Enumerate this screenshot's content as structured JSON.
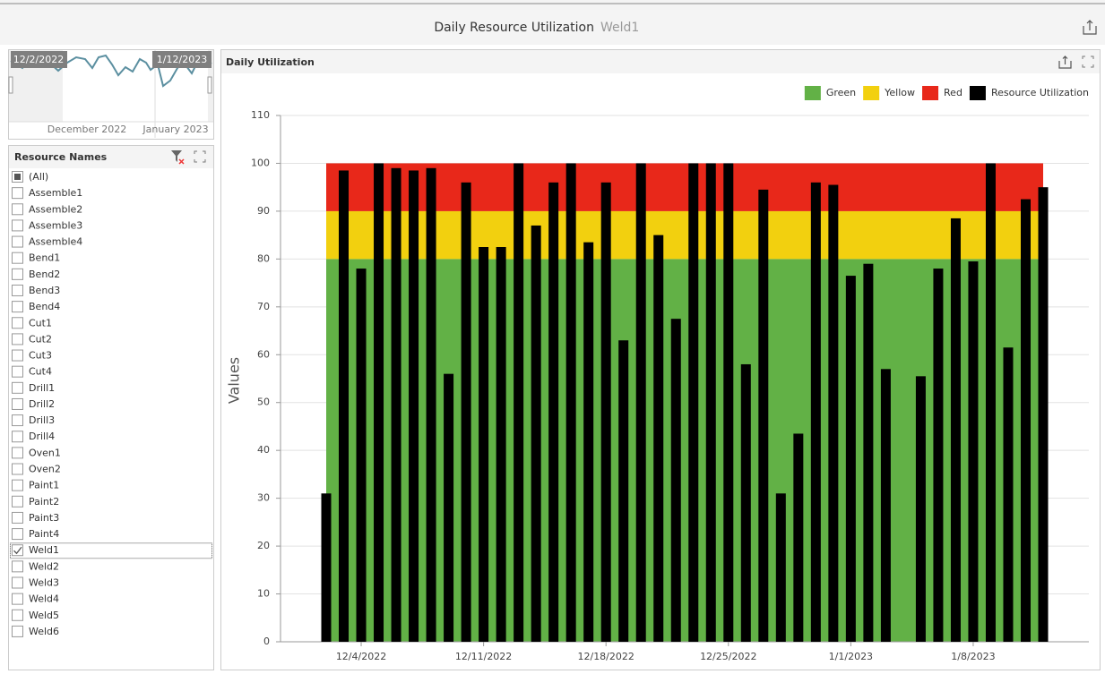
{
  "header": {
    "title": "Daily Resource Utilization",
    "subtitle": "Weld1"
  },
  "range_selector": {
    "start_label": "12/2/2022",
    "end_label": "1/12/2023",
    "months": [
      "December 2022",
      "January 2023"
    ]
  },
  "resource_list": {
    "title": "Resource Names",
    "items": [
      {
        "label": "(All)",
        "state": "partial"
      },
      {
        "label": "Assemble1",
        "state": "unchecked"
      },
      {
        "label": "Assemble2",
        "state": "unchecked"
      },
      {
        "label": "Assemble3",
        "state": "unchecked"
      },
      {
        "label": "Assemble4",
        "state": "unchecked"
      },
      {
        "label": "Bend1",
        "state": "unchecked"
      },
      {
        "label": "Bend2",
        "state": "unchecked"
      },
      {
        "label": "Bend3",
        "state": "unchecked"
      },
      {
        "label": "Bend4",
        "state": "unchecked"
      },
      {
        "label": "Cut1",
        "state": "unchecked"
      },
      {
        "label": "Cut2",
        "state": "unchecked"
      },
      {
        "label": "Cut3",
        "state": "unchecked"
      },
      {
        "label": "Cut4",
        "state": "unchecked"
      },
      {
        "label": "Drill1",
        "state": "unchecked"
      },
      {
        "label": "Drill2",
        "state": "unchecked"
      },
      {
        "label": "Drill3",
        "state": "unchecked"
      },
      {
        "label": "Drill4",
        "state": "unchecked"
      },
      {
        "label": "Oven1",
        "state": "unchecked"
      },
      {
        "label": "Oven2",
        "state": "unchecked"
      },
      {
        "label": "Paint1",
        "state": "unchecked"
      },
      {
        "label": "Paint2",
        "state": "unchecked"
      },
      {
        "label": "Paint3",
        "state": "unchecked"
      },
      {
        "label": "Paint4",
        "state": "unchecked"
      },
      {
        "label": "Weld1",
        "state": "checked"
      },
      {
        "label": "Weld2",
        "state": "unchecked"
      },
      {
        "label": "Weld3",
        "state": "unchecked"
      },
      {
        "label": "Weld4",
        "state": "unchecked"
      },
      {
        "label": "Weld5",
        "state": "unchecked"
      },
      {
        "label": "Weld6",
        "state": "unchecked"
      }
    ]
  },
  "chart_data": {
    "type": "bar",
    "title": "Daily Utilization",
    "y_label": "Values",
    "x": [
      "12/2/2022",
      "12/3/2022",
      "12/4/2022",
      "12/5/2022",
      "12/6/2022",
      "12/7/2022",
      "12/8/2022",
      "12/9/2022",
      "12/10/2022",
      "12/11/2022",
      "12/12/2022",
      "12/13/2022",
      "12/14/2022",
      "12/15/2022",
      "12/16/2022",
      "12/17/2022",
      "12/18/2022",
      "12/19/2022",
      "12/20/2022",
      "12/21/2022",
      "12/22/2022",
      "12/23/2022",
      "12/24/2022",
      "12/25/2022",
      "12/26/2022",
      "12/27/2022",
      "12/28/2022",
      "12/29/2022",
      "12/30/2022",
      "12/31/2022",
      "1/1/2023",
      "1/2/2023",
      "1/3/2023",
      "1/4/2023",
      "1/5/2023",
      "1/6/2023",
      "1/7/2023",
      "1/8/2023",
      "1/9/2023",
      "1/10/2023",
      "1/11/2023",
      "1/12/2023"
    ],
    "xticks": [
      "12/4/2022",
      "12/11/2022",
      "12/18/2022",
      "12/25/2022",
      "1/1/2023",
      "1/8/2023"
    ],
    "bands": [
      {
        "name": "Green",
        "color": "#62b146",
        "from": 0,
        "to": 80
      },
      {
        "name": "Yellow",
        "color": "#f2d00f",
        "from": 80,
        "to": 90
      },
      {
        "name": "Red",
        "color": "#e8281a",
        "from": 90,
        "to": 100
      }
    ],
    "series": [
      {
        "name": "Resource Utilization",
        "color": "#000000",
        "values": [
          31,
          98.5,
          78,
          100,
          99,
          98.5,
          99,
          56,
          96,
          82.5,
          82.5,
          100,
          87,
          96,
          100,
          83.5,
          96,
          63,
          100,
          85,
          67.5,
          100,
          100,
          100,
          58,
          94.5,
          31,
          43.5,
          96,
          95.5,
          76.5,
          79,
          57,
          null,
          55.5,
          78,
          88.5,
          79.5,
          100,
          61.5,
          92.5,
          95
        ]
      }
    ],
    "ylim": [
      0,
      110
    ],
    "yticks": [
      0,
      10,
      20,
      30,
      40,
      50,
      60,
      70,
      80,
      90,
      100,
      110
    ],
    "grid": true,
    "legend": "top-right"
  }
}
